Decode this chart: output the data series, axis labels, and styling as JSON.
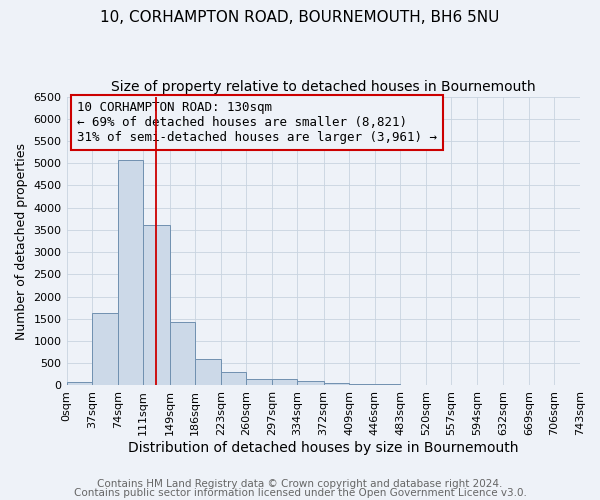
{
  "title": "10, CORHAMPTON ROAD, BOURNEMOUTH, BH6 5NU",
  "subtitle": "Size of property relative to detached houses in Bournemouth",
  "xlabel": "Distribution of detached houses by size in Bournemouth",
  "ylabel": "Number of detached properties",
  "footer1": "Contains HM Land Registry data © Crown copyright and database right 2024.",
  "footer2": "Contains public sector information licensed under the Open Government Licence v3.0.",
  "bin_edges": [
    0,
    37,
    74,
    111,
    149,
    186,
    223,
    260,
    297,
    334,
    372,
    409,
    446,
    483,
    520,
    557,
    594,
    632,
    669,
    706,
    743
  ],
  "bin_labels": [
    "0sqm",
    "37sqm",
    "74sqm",
    "111sqm",
    "149sqm",
    "186sqm",
    "223sqm",
    "260sqm",
    "297sqm",
    "334sqm",
    "372sqm",
    "409sqm",
    "446sqm",
    "483sqm",
    "520sqm",
    "557sqm",
    "594sqm",
    "632sqm",
    "669sqm",
    "706sqm",
    "743sqm"
  ],
  "bar_values": [
    75,
    1625,
    5075,
    3600,
    1425,
    600,
    300,
    150,
    150,
    100,
    50,
    25,
    25,
    0,
    0,
    0,
    0,
    0,
    0,
    0
  ],
  "bar_color": "#ccd9e8",
  "bar_edge_color": "#7090b0",
  "property_line_x": 130,
  "property_line_color": "#cc0000",
  "ylim": [
    0,
    6500
  ],
  "yticks": [
    0,
    500,
    1000,
    1500,
    2000,
    2500,
    3000,
    3500,
    4000,
    4500,
    5000,
    5500,
    6000,
    6500
  ],
  "annotation_text": "10 CORHAMPTON ROAD: 130sqm\n← 69% of detached houses are smaller (8,821)\n31% of semi-detached houses are larger (3,961) →",
  "annotation_box_color": "#cc0000",
  "grid_color": "#c8d4e0",
  "background_color": "#eef2f8",
  "title_fontsize": 11,
  "subtitle_fontsize": 10,
  "xlabel_fontsize": 10,
  "ylabel_fontsize": 9,
  "tick_fontsize": 8,
  "footer_fontsize": 7.5,
  "annotation_fontsize": 9
}
